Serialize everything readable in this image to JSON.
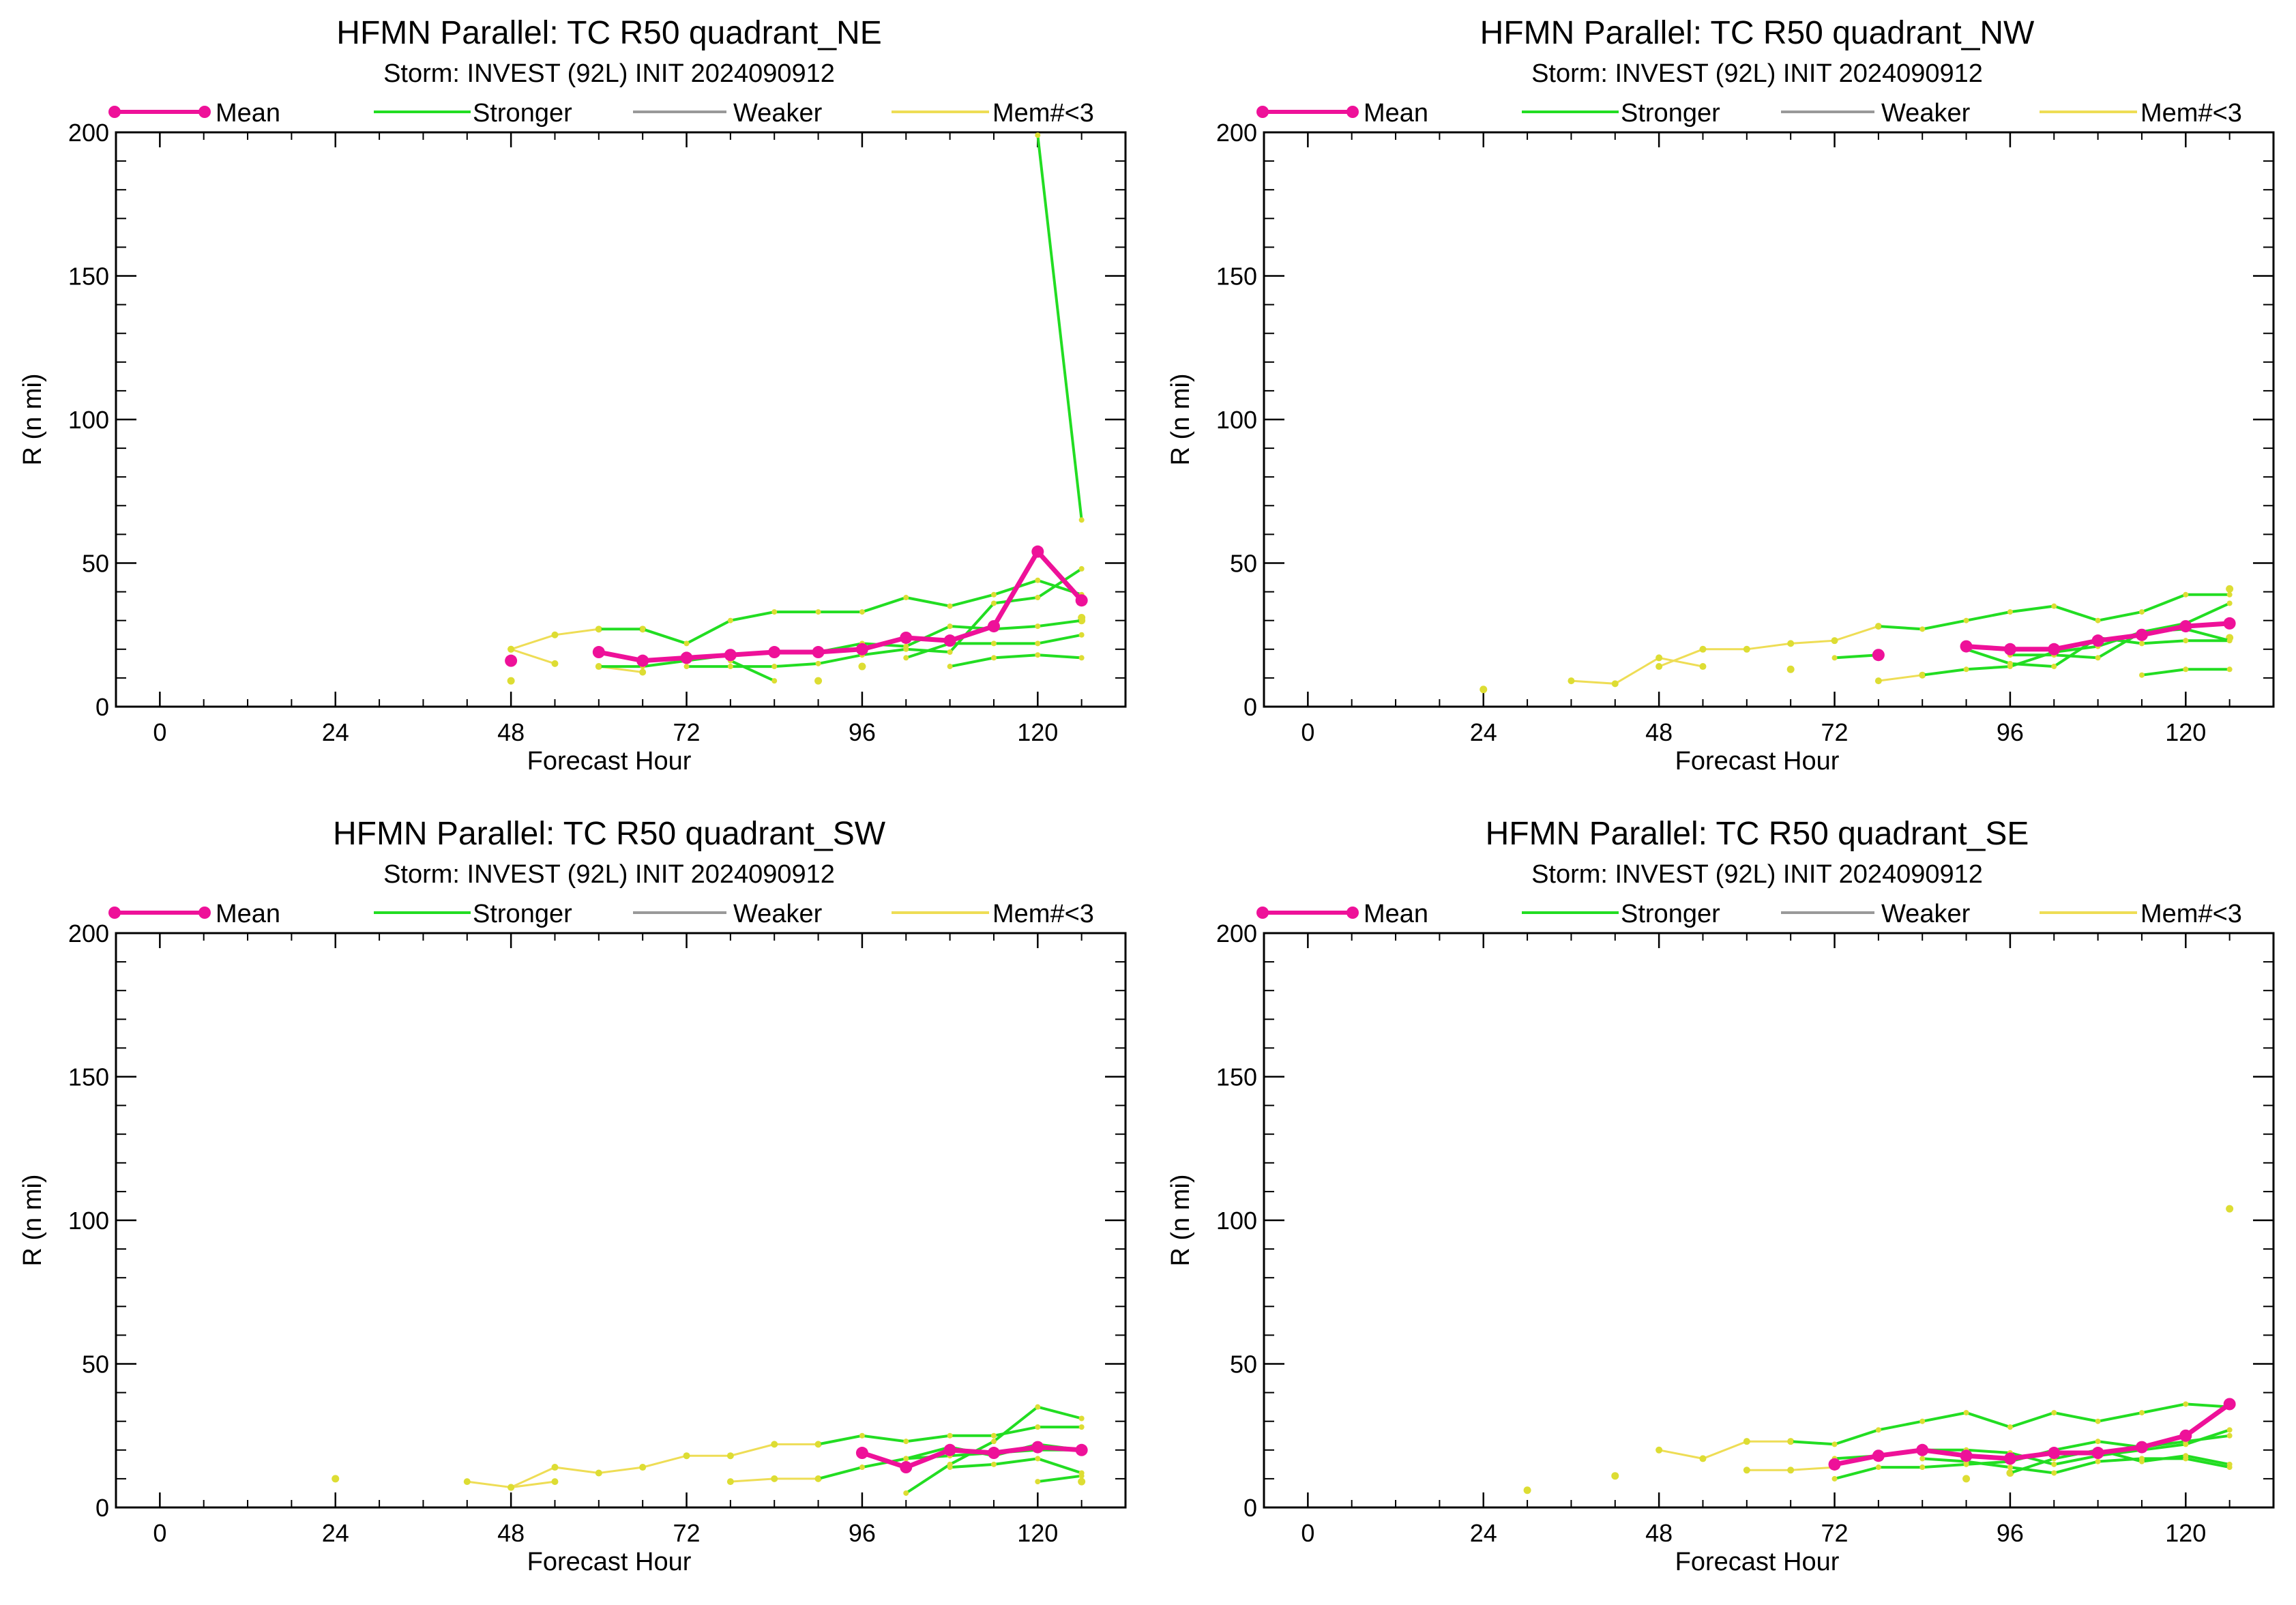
{
  "legend": {
    "mean": "Mean",
    "stronger": "Stronger",
    "weaker": "Weaker",
    "mem": "Mem#<3"
  },
  "colors": {
    "mean": "#ee1199",
    "stronger": "#22dd22",
    "weaker": "#999999",
    "mem": "#eedd55",
    "mem_dot": "#dddd33"
  },
  "chart_data": [
    {
      "type": "line",
      "title": "HFMN Parallel: TC  R50 quadrant_NE",
      "subtitle": "Storm: INVEST (92L) INIT 2024090912",
      "xlabel": "Forecast Hour",
      "ylabel": "R (n mi)",
      "xlim": [
        -6,
        132
      ],
      "ylim": [
        0,
        200
      ],
      "xticks": [
        "0",
        "24",
        "48",
        "72",
        "96",
        "120"
      ],
      "yticks": [
        "0",
        "50",
        "100",
        "150",
        "200"
      ],
      "mean": [
        [
          48,
          16
        ],
        [
          60,
          19
        ],
        [
          66,
          16
        ],
        [
          72,
          17
        ],
        [
          78,
          18
        ],
        [
          84,
          19
        ],
        [
          90,
          19
        ],
        [
          96,
          20
        ],
        [
          102,
          24
        ],
        [
          108,
          23
        ],
        [
          114,
          28
        ],
        [
          120,
          54
        ],
        [
          126,
          37
        ]
      ],
      "stronger": [
        [
          [
            60,
            27
          ],
          [
            66,
            27
          ],
          [
            72,
            22
          ],
          [
            78,
            30
          ],
          [
            84,
            33
          ],
          [
            90,
            33
          ],
          [
            96,
            33
          ],
          [
            102,
            38
          ],
          [
            108,
            35
          ],
          [
            114,
            39
          ],
          [
            120,
            44
          ],
          [
            126,
            39
          ]
        ],
        [
          [
            60,
            14
          ],
          [
            66,
            14
          ],
          [
            72,
            16
          ],
          [
            78,
            18
          ],
          [
            84,
            19
          ],
          [
            90,
            19
          ],
          [
            96,
            22
          ],
          [
            102,
            21
          ],
          [
            108,
            28
          ],
          [
            114,
            27
          ],
          [
            120,
            28
          ],
          [
            126,
            30
          ]
        ],
        [
          [
            72,
            14
          ],
          [
            78,
            14
          ],
          [
            84,
            14
          ],
          [
            90,
            15
          ],
          [
            96,
            18
          ],
          [
            102,
            20
          ],
          [
            108,
            19
          ],
          [
            114,
            36
          ],
          [
            120,
            38
          ],
          [
            126,
            48
          ]
        ],
        [
          [
            78,
            16
          ],
          [
            84,
            9
          ]
        ],
        [
          [
            108,
            14
          ],
          [
            114,
            17
          ],
          [
            120,
            18
          ],
          [
            126,
            17
          ]
        ],
        [
          [
            102,
            17
          ],
          [
            108,
            22
          ],
          [
            114,
            22
          ],
          [
            120,
            22
          ],
          [
            126,
            25
          ]
        ],
        [
          [
            120,
            199
          ],
          [
            126,
            65
          ]
        ]
      ],
      "mem": [
        [
          [
            48,
            20
          ],
          [
            54,
            25
          ],
          [
            60,
            27
          ],
          [
            66,
            27
          ]
        ],
        [
          [
            48,
            20
          ],
          [
            54,
            15
          ]
        ],
        [
          [
            60,
            14
          ],
          [
            66,
            12
          ]
        ]
      ],
      "mem_dots": [
        [
          48,
          9
        ],
        [
          90,
          9
        ],
        [
          96,
          14
        ],
        [
          126,
          30
        ],
        [
          126,
          31
        ]
      ]
    },
    {
      "type": "line",
      "title": "HFMN Parallel: TC  R50 quadrant_NW",
      "subtitle": "Storm: INVEST (92L) INIT 2024090912",
      "xlabel": "Forecast Hour",
      "ylabel": "R (n mi)",
      "xlim": [
        -6,
        132
      ],
      "ylim": [
        0,
        200
      ],
      "xticks": [
        "0",
        "24",
        "48",
        "72",
        "96",
        "120"
      ],
      "yticks": [
        "0",
        "50",
        "100",
        "150",
        "200"
      ],
      "mean": [
        [
          78,
          18
        ],
        [
          90,
          21
        ],
        [
          96,
          20
        ],
        [
          102,
          20
        ],
        [
          108,
          23
        ],
        [
          114,
          25
        ],
        [
          120,
          28
        ],
        [
          126,
          29
        ]
      ],
      "stronger": [
        [
          [
            72,
            17
          ],
          [
            78,
            18
          ]
        ],
        [
          [
            78,
            28
          ],
          [
            84,
            27
          ],
          [
            90,
            30
          ],
          [
            96,
            33
          ],
          [
            102,
            35
          ],
          [
            108,
            30
          ],
          [
            114,
            33
          ],
          [
            120,
            39
          ],
          [
            126,
            39
          ]
        ],
        [
          [
            84,
            11
          ],
          [
            90,
            13
          ],
          [
            96,
            14
          ],
          [
            102,
            19
          ],
          [
            108,
            21
          ],
          [
            114,
            26
          ],
          [
            120,
            29
          ],
          [
            126,
            36
          ]
        ],
        [
          [
            90,
            20
          ],
          [
            96,
            15
          ],
          [
            102,
            14
          ],
          [
            108,
            24
          ],
          [
            114,
            22
          ],
          [
            120,
            23
          ],
          [
            126,
            23
          ]
        ],
        [
          [
            114,
            11
          ],
          [
            120,
            13
          ],
          [
            126,
            13
          ]
        ],
        [
          [
            96,
            18
          ],
          [
            102,
            18
          ],
          [
            108,
            17
          ],
          [
            114,
            26
          ],
          [
            120,
            27
          ],
          [
            126,
            23
          ]
        ]
      ],
      "mem": [
        [
          [
            36,
            9
          ],
          [
            42,
            8
          ],
          [
            48,
            17
          ],
          [
            54,
            14
          ]
        ],
        [
          [
            48,
            14
          ],
          [
            54,
            20
          ],
          [
            60,
            20
          ],
          [
            66,
            22
          ],
          [
            72,
            23
          ],
          [
            78,
            28
          ]
        ],
        [
          [
            78,
            9
          ],
          [
            84,
            11
          ]
        ]
      ],
      "mem_dots": [
        [
          24,
          6
        ],
        [
          66,
          13
        ],
        [
          126,
          41
        ],
        [
          126,
          24
        ]
      ]
    },
    {
      "type": "line",
      "title": "HFMN Parallel: TC  R50 quadrant_SW",
      "subtitle": "Storm: INVEST (92L) INIT 2024090912",
      "xlabel": "Forecast Hour",
      "ylabel": "R (n mi)",
      "xlim": [
        -6,
        132
      ],
      "ylim": [
        0,
        200
      ],
      "xticks": [
        "0",
        "24",
        "48",
        "72",
        "96",
        "120"
      ],
      "yticks": [
        "0",
        "50",
        "100",
        "150",
        "200"
      ],
      "mean": [
        [
          96,
          19
        ],
        [
          102,
          14
        ],
        [
          108,
          20
        ],
        [
          114,
          19
        ],
        [
          120,
          21
        ],
        [
          126,
          20
        ]
      ],
      "stronger": [
        [
          [
            90,
            22
          ],
          [
            96,
            25
          ],
          [
            102,
            23
          ],
          [
            108,
            25
          ],
          [
            114,
            25
          ],
          [
            120,
            28
          ],
          [
            126,
            28
          ]
        ],
        [
          [
            90,
            10
          ],
          [
            96,
            14
          ],
          [
            102,
            17
          ],
          [
            108,
            18
          ],
          [
            114,
            19
          ],
          [
            120,
            20
          ],
          [
            126,
            20
          ]
        ],
        [
          [
            102,
            5
          ],
          [
            108,
            15
          ],
          [
            114,
            23
          ],
          [
            120,
            35
          ],
          [
            126,
            31
          ]
        ],
        [
          [
            102,
            17
          ],
          [
            108,
            21
          ],
          [
            114,
            18
          ],
          [
            120,
            22
          ],
          [
            126,
            20
          ]
        ],
        [
          [
            108,
            14
          ],
          [
            114,
            15
          ],
          [
            120,
            17
          ],
          [
            126,
            12
          ]
        ],
        [
          [
            120,
            9
          ],
          [
            126,
            11
          ]
        ]
      ],
      "mem": [
        [
          [
            42,
            9
          ],
          [
            48,
            7
          ],
          [
            54,
            14
          ],
          [
            60,
            12
          ],
          [
            66,
            14
          ],
          [
            72,
            18
          ],
          [
            78,
            18
          ],
          [
            84,
            22
          ],
          [
            90,
            22
          ]
        ],
        [
          [
            48,
            7
          ],
          [
            54,
            9
          ]
        ],
        [
          [
            78,
            9
          ],
          [
            84,
            10
          ],
          [
            90,
            10
          ]
        ]
      ],
      "mem_dots": [
        [
          24,
          10
        ],
        [
          126,
          9
        ]
      ]
    },
    {
      "type": "line",
      "title": "HFMN Parallel: TC  R50 quadrant_SE",
      "subtitle": "Storm: INVEST (92L) INIT 2024090912",
      "xlabel": "Forecast Hour",
      "ylabel": "R (n mi)",
      "xlim": [
        -6,
        132
      ],
      "ylim": [
        0,
        200
      ],
      "xticks": [
        "0",
        "24",
        "48",
        "72",
        "96",
        "120"
      ],
      "yticks": [
        "0",
        "50",
        "100",
        "150",
        "200"
      ],
      "mean": [
        [
          72,
          15
        ],
        [
          78,
          18
        ],
        [
          84,
          20
        ],
        [
          90,
          18
        ],
        [
          96,
          17
        ],
        [
          102,
          19
        ],
        [
          108,
          19
        ],
        [
          114,
          21
        ],
        [
          120,
          25
        ],
        [
          126,
          36
        ]
      ],
      "stronger": [
        [
          [
            66,
            23
          ],
          [
            72,
            22
          ],
          [
            78,
            27
          ],
          [
            84,
            30
          ],
          [
            90,
            33
          ],
          [
            96,
            28
          ],
          [
            102,
            33
          ],
          [
            108,
            30
          ],
          [
            114,
            33
          ],
          [
            120,
            36
          ],
          [
            126,
            35
          ]
        ],
        [
          [
            72,
            10
          ],
          [
            78,
            14
          ],
          [
            84,
            14
          ],
          [
            90,
            15
          ],
          [
            96,
            16
          ],
          [
            102,
            20
          ],
          [
            108,
            23
          ],
          [
            114,
            21
          ],
          [
            120,
            23
          ],
          [
            126,
            25
          ]
        ],
        [
          [
            72,
            17
          ],
          [
            78,
            18
          ],
          [
            84,
            20
          ],
          [
            90,
            20
          ],
          [
            96,
            19
          ],
          [
            102,
            15
          ],
          [
            108,
            18
          ],
          [
            114,
            20
          ],
          [
            120,
            22
          ],
          [
            126,
            27
          ]
        ],
        [
          [
            96,
            12
          ],
          [
            102,
            17
          ],
          [
            108,
            20
          ],
          [
            114,
            16
          ],
          [
            120,
            18
          ],
          [
            126,
            15
          ]
        ],
        [
          [
            84,
            17
          ],
          [
            90,
            16
          ],
          [
            96,
            14
          ],
          [
            102,
            12
          ],
          [
            108,
            16
          ],
          [
            114,
            17
          ],
          [
            120,
            17
          ],
          [
            126,
            14
          ]
        ]
      ],
      "mem": [
        [
          [
            48,
            20
          ],
          [
            54,
            17
          ],
          [
            60,
            23
          ],
          [
            66,
            23
          ]
        ],
        [
          [
            60,
            13
          ],
          [
            66,
            13
          ],
          [
            72,
            14
          ]
        ]
      ],
      "mem_dots": [
        [
          30,
          6
        ],
        [
          42,
          11
        ],
        [
          90,
          10
        ],
        [
          96,
          12
        ],
        [
          126,
          104
        ]
      ]
    }
  ]
}
